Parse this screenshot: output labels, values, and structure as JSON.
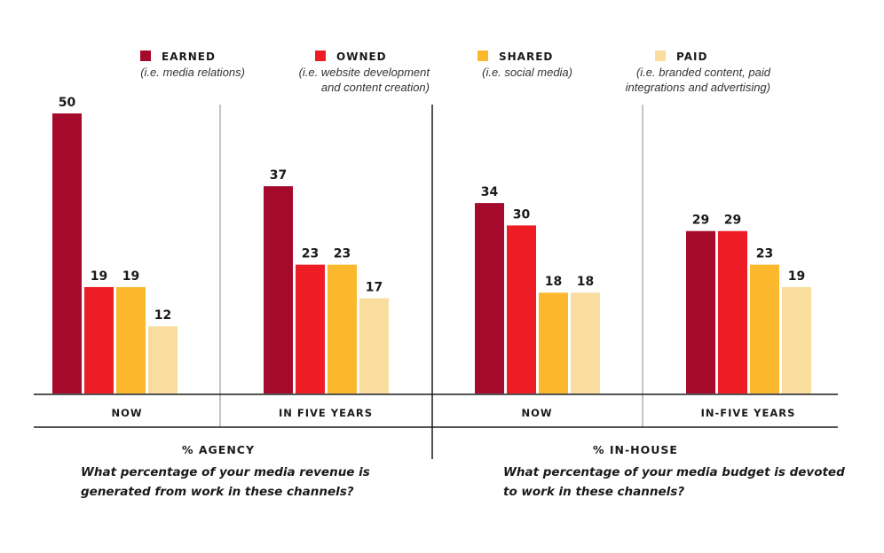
{
  "chart_data": {
    "type": "bar",
    "ylim": [
      0,
      50
    ],
    "legend": [
      {
        "name": "EARNED",
        "note": [
          "(i.e. media relations)"
        ],
        "color": "#a50a2c"
      },
      {
        "name": "OWNED",
        "note": [
          "(i.e. website development",
          "and content creation)"
        ],
        "color": "#ee1c25"
      },
      {
        "name": "SHARED",
        "note": [
          "(i.e. social media)"
        ],
        "color": "#fbb82d"
      },
      {
        "name": "PAID",
        "note": [
          "(i.e. branded content, paid",
          "integrations and advertising)"
        ],
        "color": "#f8dd9f"
      }
    ],
    "groups": [
      {
        "label": "NOW",
        "section": "agency",
        "values": [
          50,
          19,
          19,
          12
        ]
      },
      {
        "label": "IN FIVE YEARS",
        "section": "agency",
        "values": [
          37,
          23,
          23,
          17
        ]
      },
      {
        "label": "NOW",
        "section": "inhouse",
        "values": [
          34,
          30,
          18,
          18
        ]
      },
      {
        "label": "IN-FIVE YEARS",
        "section": "inhouse",
        "values": [
          29,
          29,
          23,
          19
        ]
      }
    ],
    "sections": [
      {
        "id": "agency",
        "title": "% AGENCY",
        "question": [
          "What percentage of your media revenue is",
          "generated from work in these channels?"
        ]
      },
      {
        "id": "inhouse",
        "title": "% IN-HOUSE",
        "question": [
          "What percentage of your media budget is devoted",
          "to work in these channels?"
        ]
      }
    ]
  }
}
